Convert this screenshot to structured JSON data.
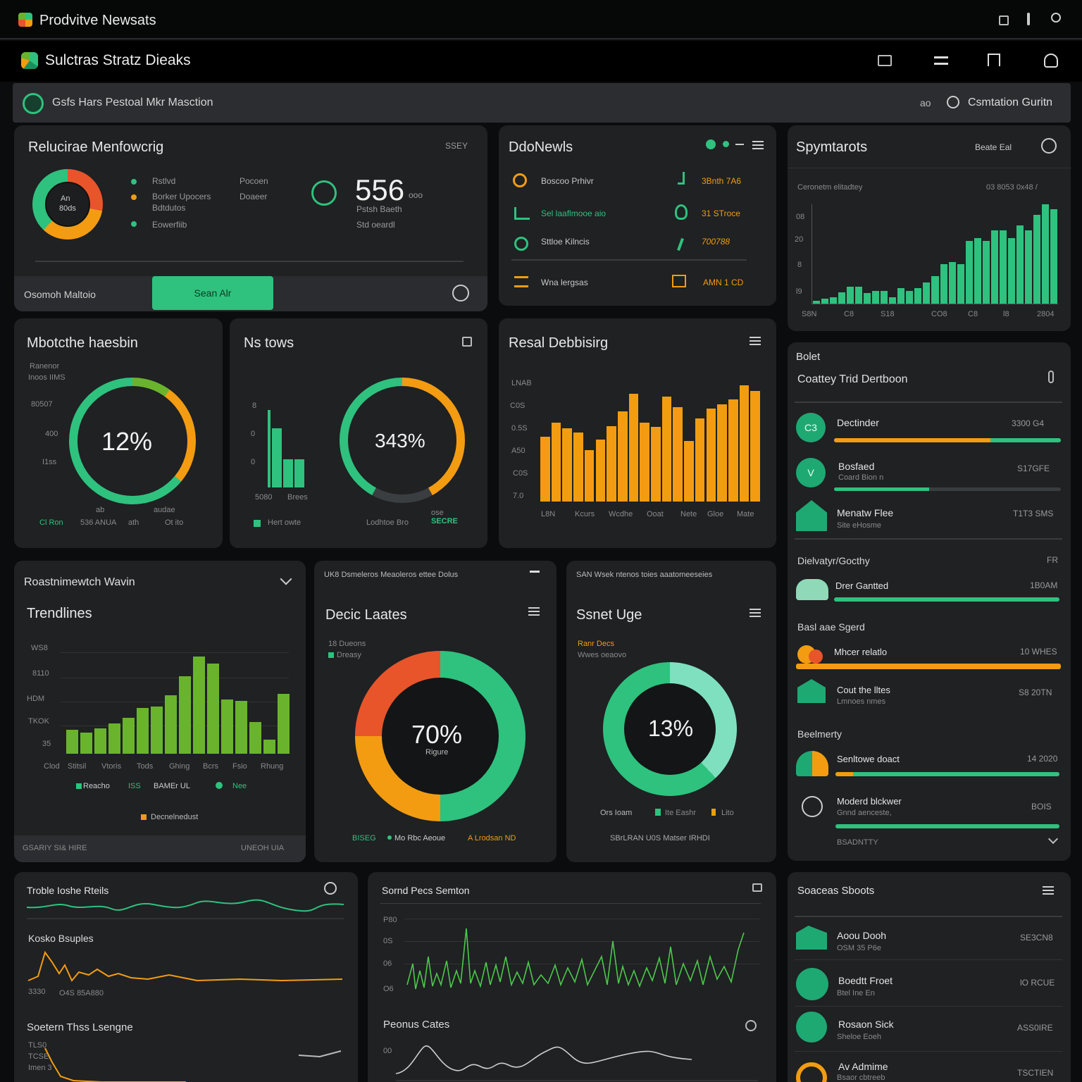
{
  "app": {
    "title": "Prodvitve Newsats",
    "subtitle": "Sulctras Stratz Dieaks"
  },
  "searchbar": {
    "text": "Gsfs Hars Pestoal Mkr Masction",
    "right_label": "Csmtation Guritn",
    "left_symbol": "ao"
  },
  "colors": {
    "green": "#2ec27e",
    "orange": "#f39c12",
    "red": "#e8552b",
    "lime": "#6ab42d",
    "panel": "#1f2123"
  },
  "panel_monitoring": {
    "title": "Relucirae Menfowcrig",
    "corner": "SSEY",
    "donut_label1": "An",
    "donut_label2": "80ds",
    "legend": [
      "Rstlvd",
      "Borker Upocers",
      "Bdtdutos",
      "Eowerfiib"
    ],
    "mid_labels": [
      "Pocoen",
      "Doaeer"
    ],
    "big_value": "556",
    "big_unit": "ooo",
    "sub1": "Pstsh Baeth",
    "sub2": "Std oeardl",
    "footer_label": "Osomoh Maltoio",
    "button": "Sean Alr"
  },
  "panel_news": {
    "title": "DdoNewls",
    "rows": [
      {
        "label": "Boscoo Prhivr",
        "value": "3Bnth 7A6"
      },
      {
        "label": "Sel laaflmooe aio",
        "value": "31 STroce"
      },
      {
        "label": "Sttloe Kilncis",
        "value": "700788"
      },
      {
        "label": "Wna lergsas",
        "value": "AMN  1 CD"
      }
    ]
  },
  "panel_symptoms": {
    "title": "Spymtarots",
    "corner": "Beate Eal",
    "caption": "Ceronetm elitadtey",
    "caption_right": "03 8053 0x48 /",
    "y_ticks": [
      "08",
      "20",
      "8",
      "l9"
    ],
    "x_ticks": [
      "S8N",
      "C8",
      "S18",
      "CO8",
      "C8",
      "l8",
      "2804"
    ]
  },
  "panel_mob": {
    "title": "Mbotcthe haesbin",
    "note1": "Ranenor",
    "note2": "Inoos IIMS",
    "y_ticks": [
      "80507",
      "400",
      "I1ss"
    ],
    "value": "12%",
    "foot": [
      "Cl Ron",
      "536 ANUA",
      "ath",
      "Ot ito"
    ],
    "foot_small": [
      "ab",
      "audae"
    ]
  },
  "panel_ns": {
    "title": "Ns tows",
    "y_ticks": [
      "8",
      "0",
      "0"
    ],
    "bar_labels": [
      "5080",
      "Brees"
    ],
    "value": "343%",
    "foot_left": "Hert owte",
    "foot_right": "Lodhtoe Bro",
    "foot_tag": "SECRE",
    "foot_small": "ose"
  },
  "panel_real": {
    "title": "Resal Debbisirg",
    "y_ticks": [
      "LNAB",
      "C0S",
      "0.5S",
      "A50",
      "C0S",
      "7.0"
    ],
    "x_ticks": [
      "L8N",
      "Kcurs",
      "Wcdhe",
      "Ooat",
      "Nete",
      "Gloe",
      "Mate"
    ]
  },
  "panel_sidebar": {
    "head": "Bolet",
    "title": "Coattey Trid Dertboon",
    "items": [
      {
        "name": "Dectinder",
        "sub": "",
        "value": "3300 G4",
        "icon": "C3"
      },
      {
        "name": "Bosfaed",
        "sub": "Coard Bion n",
        "value": "S17GFE",
        "icon": "V"
      },
      {
        "name": "Menatw Flee",
        "sub": "Site eHosme",
        "value": "T1T3 SMS",
        "icon": "F3"
      }
    ],
    "section2": "Dielvatyr/Gocthy",
    "s2_corner": "FR",
    "s2_item": {
      "name": "Drer Gantted",
      "value": "1B0AM"
    },
    "section3": "Basl aae Sgerd",
    "s3_items": [
      {
        "name": "Mhcer relatlo",
        "sub": "",
        "value": "10 WHES"
      },
      {
        "name": "Cout the lltes",
        "sub": "Lmnoes nmes",
        "value": "S8 20TN"
      }
    ],
    "section4": "Beelmerty",
    "s4_items": [
      {
        "name": "Senltowe doact",
        "sub": "",
        "value": "14 2020"
      },
      {
        "name": "Moderd blckwer",
        "sub": "Gnnd aenceste,",
        "value": "BOIS"
      }
    ],
    "s4_foot": "BSADNTTY"
  },
  "panel_trend": {
    "header": "Roastnimewtch Wavin",
    "title": "Trendlines",
    "y_ticks": [
      "WS8",
      "8110",
      "HDM",
      "TKOK",
      "35"
    ],
    "x_ticks": [
      "Clod",
      "Stitsil",
      "Vtoris",
      "Tods",
      "Ghing",
      "Bcrs",
      "Fsio",
      "Rhung"
    ],
    "legend": [
      "Reacho",
      "ISS",
      "BAMEr UL",
      "Nee"
    ],
    "legend2": "Decnelnedust",
    "footer_left": "GSARIY SI& HIRE",
    "footer_right": "UNEOH UIA"
  },
  "panel_deck": {
    "header": "UK8 Dsmeleros Meaoleros ettee Dolus",
    "title": "Decic Laates",
    "legend1": "18 Dueons",
    "legend2": "Dreasy",
    "value": "70%",
    "sub": "Rigure",
    "foot": [
      "BISEG",
      "Mo Rbc Aeoue",
      "A Lrodsan ND"
    ]
  },
  "panel_usage": {
    "header": "SAN  Wsek ntenos toies aaatomeeseies",
    "title": "Ssnet Uge",
    "legend1": "Ranr Decs",
    "legend2": "Wwes oeaovo",
    "value": "13%",
    "foot": [
      "Ors Ioam",
      "Ite Eashr",
      "Lito"
    ],
    "foot2": "SBrLRAN  U0S Matser IRHDI"
  },
  "panel_line1": {
    "title": "Troble Ioshe Rteils",
    "sub_title": "Kosko Bsuples",
    "foot": [
      "3330",
      "O4S 85A880"
    ],
    "bottom_title": "Soetern Thss Lsengne",
    "bottom_ticks": [
      "TLS0",
      "TCSE",
      "Imen 3"
    ]
  },
  "panel_line2": {
    "title": "Sornd Pecs Semton",
    "y_ticks": [
      "P80",
      "0S",
      "06",
      "O6"
    ],
    "bottom_title": "Peonus Cates",
    "bottom_ticks": [
      "00"
    ]
  },
  "panel_sources": {
    "title": "Soaceas Sboots",
    "items": [
      {
        "name": "Aoou Dooh",
        "sub": "OSM 35 P6e",
        "value": "SE3CN8"
      },
      {
        "name": "Boedtt Froet",
        "sub": "Btel Ine En",
        "value": "lO RCUE"
      },
      {
        "name": "Rosaon Sick",
        "sub": "Sheloe Eoeh",
        "value": "ASS0IRE"
      },
      {
        "name": "Av Admime",
        "sub": "Bsaor cbtreeb",
        "value": "TSCTIEN"
      }
    ]
  },
  "chart_data": [
    {
      "type": "bar",
      "title": "Spymtarots",
      "values": [
        6,
        10,
        12,
        22,
        32,
        32,
        20,
        24,
        24,
        12,
        30,
        24,
        30,
        40,
        52,
        76,
        80,
        76,
        120,
        126,
        120,
        140,
        140,
        126,
        150,
        140,
        170,
        190,
        180
      ]
    },
    {
      "type": "bar",
      "title": "Resal Debbisirg",
      "values": [
        90,
        110,
        102,
        96,
        72,
        86,
        105,
        126,
        150,
        110,
        104,
        146,
        132,
        84,
        116,
        130,
        136,
        142,
        162,
        154
      ]
    },
    {
      "type": "bar",
      "title": "Trendlines",
      "values": [
        34,
        30,
        36,
        42,
        50,
        64,
        66,
        82,
        108,
        136,
        126,
        76,
        74,
        44,
        20,
        84
      ]
    }
  ]
}
